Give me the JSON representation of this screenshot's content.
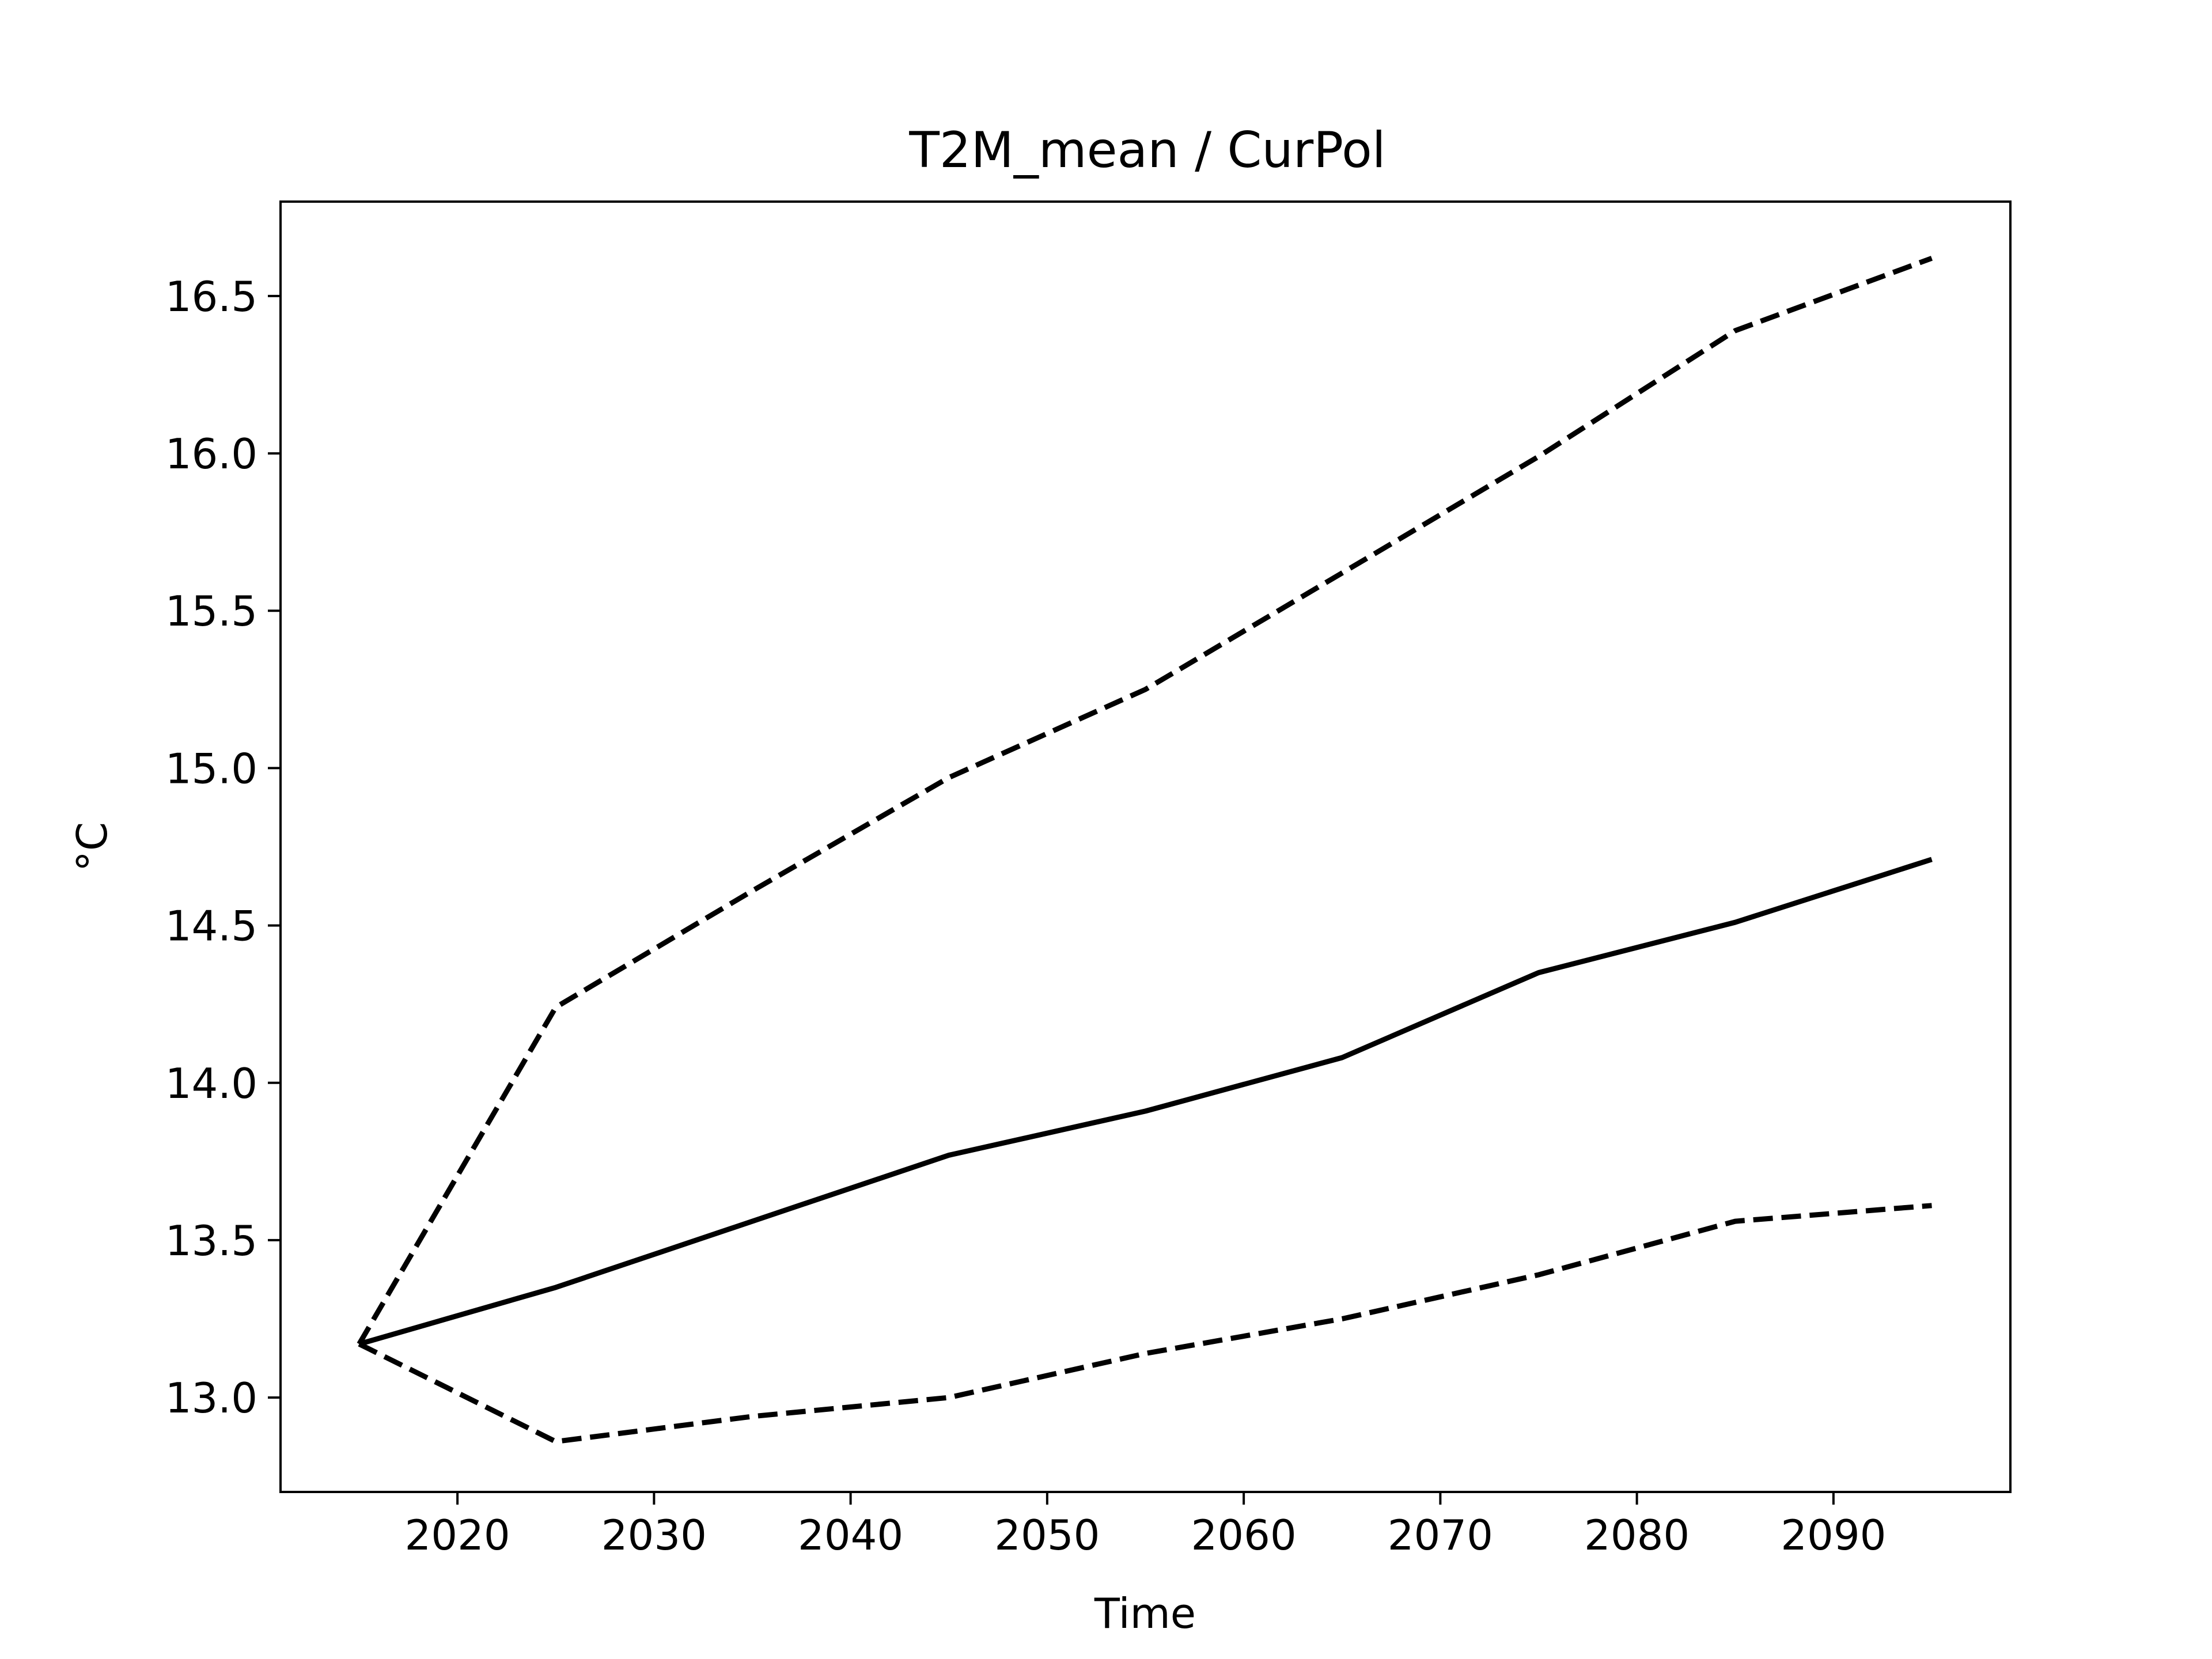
{
  "chart_data": {
    "type": "line",
    "title": "T2M_mean / CurPol",
    "xlabel": "Time",
    "ylabel": "°C",
    "xlim": [
      2011,
      2099
    ],
    "ylim": [
      12.7,
      16.8
    ],
    "xticks": [
      2020,
      2030,
      2040,
      2050,
      2060,
      2070,
      2080,
      2090
    ],
    "yticks": [
      13.0,
      13.5,
      14.0,
      14.5,
      15.0,
      15.5,
      16.0,
      16.5
    ],
    "ytick_labels": [
      "13.0",
      "13.5",
      "14.0",
      "14.5",
      "15.0",
      "15.5",
      "16.0",
      "16.5"
    ],
    "x": [
      2015,
      2025,
      2035,
      2045,
      2055,
      2065,
      2075,
      2085,
      2095
    ],
    "grid": false,
    "legend": "none",
    "series": [
      {
        "style": "solid",
        "color": "#000000",
        "values": [
          13.17,
          13.35,
          13.56,
          13.77,
          13.91,
          14.08,
          14.35,
          14.51,
          14.71
        ]
      },
      {
        "style": "dashed",
        "color": "#000000",
        "values": [
          13.17,
          14.24,
          14.61,
          14.97,
          15.25,
          15.62,
          15.99,
          16.39,
          16.62
        ]
      },
      {
        "style": "dashed",
        "color": "#000000",
        "values": [
          13.17,
          12.86,
          12.94,
          13.0,
          13.14,
          13.25,
          13.39,
          13.56,
          13.61
        ]
      }
    ]
  }
}
